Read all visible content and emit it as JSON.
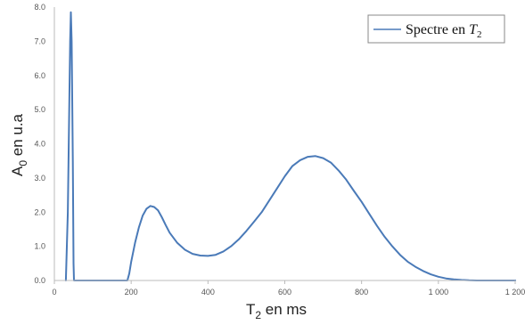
{
  "chart_data": {
    "type": "line",
    "title": "",
    "xlabel": {
      "base": "T",
      "sub": "2",
      "suffix": " en ms"
    },
    "ylabel": {
      "base": "A",
      "sub": "0",
      "suffix": " en u.a"
    },
    "xlim": [
      0,
      1200
    ],
    "ylim": [
      0,
      8
    ],
    "x_ticks": [
      {
        "value": 0,
        "label": "0"
      },
      {
        "value": 200,
        "label": "200"
      },
      {
        "value": 400,
        "label": "400"
      },
      {
        "value": 600,
        "label": "600"
      },
      {
        "value": 800,
        "label": "800"
      },
      {
        "value": 1000,
        "label": "1 000"
      },
      {
        "value": 1200,
        "label": "1 200"
      }
    ],
    "y_ticks": [
      {
        "value": 0,
        "label": "0.0"
      },
      {
        "value": 1,
        "label": "1.0"
      },
      {
        "value": 2,
        "label": "2.0"
      },
      {
        "value": 3,
        "label": "3.0"
      },
      {
        "value": 4,
        "label": "4.0"
      },
      {
        "value": 5,
        "label": "5.0"
      },
      {
        "value": 6,
        "label": "6.0"
      },
      {
        "value": 7,
        "label": "7.0"
      },
      {
        "value": 8,
        "label": "8.0"
      }
    ],
    "grid": false,
    "legend": {
      "placement": "top-right",
      "text": "Spectre en ",
      "math_base": "T",
      "math_sub": "2"
    },
    "series": [
      {
        "name": "Spectre en T2",
        "color": "#4a7ab8",
        "points": [
          [
            30,
            0
          ],
          [
            35,
            2.0
          ],
          [
            38,
            4.5
          ],
          [
            41,
            7.0
          ],
          [
            43,
            7.85
          ],
          [
            45,
            7.0
          ],
          [
            48,
            3.5
          ],
          [
            50,
            0.5
          ],
          [
            51,
            0
          ],
          [
            190,
            0
          ],
          [
            195,
            0.2
          ],
          [
            200,
            0.55
          ],
          [
            210,
            1.1
          ],
          [
            220,
            1.55
          ],
          [
            230,
            1.9
          ],
          [
            240,
            2.1
          ],
          [
            250,
            2.18
          ],
          [
            260,
            2.15
          ],
          [
            270,
            2.05
          ],
          [
            280,
            1.85
          ],
          [
            290,
            1.62
          ],
          [
            300,
            1.4
          ],
          [
            320,
            1.1
          ],
          [
            340,
            0.9
          ],
          [
            360,
            0.78
          ],
          [
            380,
            0.73
          ],
          [
            400,
            0.72
          ],
          [
            420,
            0.75
          ],
          [
            440,
            0.85
          ],
          [
            460,
            1.0
          ],
          [
            480,
            1.2
          ],
          [
            500,
            1.45
          ],
          [
            520,
            1.72
          ],
          [
            540,
            2.0
          ],
          [
            560,
            2.35
          ],
          [
            580,
            2.7
          ],
          [
            600,
            3.05
          ],
          [
            620,
            3.35
          ],
          [
            640,
            3.52
          ],
          [
            660,
            3.62
          ],
          [
            680,
            3.64
          ],
          [
            700,
            3.58
          ],
          [
            720,
            3.45
          ],
          [
            740,
            3.22
          ],
          [
            760,
            2.95
          ],
          [
            780,
            2.62
          ],
          [
            800,
            2.3
          ],
          [
            820,
            1.95
          ],
          [
            840,
            1.6
          ],
          [
            860,
            1.28
          ],
          [
            880,
            1.0
          ],
          [
            900,
            0.75
          ],
          [
            920,
            0.55
          ],
          [
            940,
            0.4
          ],
          [
            960,
            0.28
          ],
          [
            980,
            0.18
          ],
          [
            1000,
            0.11
          ],
          [
            1020,
            0.06
          ],
          [
            1040,
            0.03
          ],
          [
            1060,
            0.015
          ],
          [
            1080,
            0.005
          ],
          [
            1100,
            0
          ],
          [
            1200,
            0
          ]
        ]
      }
    ]
  }
}
